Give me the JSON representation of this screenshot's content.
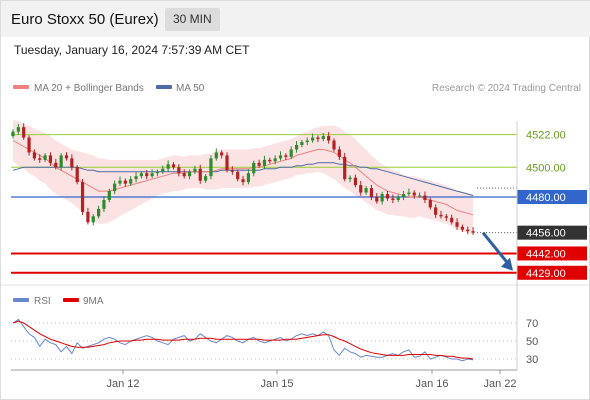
{
  "header": {
    "title": "Euro Stoxx 50 (Eurex)",
    "timeframe": "30 MIN",
    "datetime": "Tuesday, January 16, 2024 7:57:39 AM CET"
  },
  "legend": {
    "ma20": "MA 20 + Bollinger Bands",
    "ma50": "MA 50",
    "credit": "Research © 2024 Trading Central",
    "rsi": "RSI",
    "rsi_ma": "9MA"
  },
  "colors": {
    "ma20": "#f08080",
    "bands": "#fbdada",
    "ma50": "#4a6aa8",
    "up": "#2e8b2e",
    "down": "#b22222",
    "resistance": "#9acd32",
    "pivot": "#3366cc",
    "support": "#e00000",
    "last_price": "#333333",
    "arrow": "#2f5f9e",
    "rsi": "#6688cc",
    "rsi_ma": "#e00000"
  },
  "chart_data": [
    {
      "type": "candlestick",
      "title": "Euro Stoxx 50 (Eurex)",
      "timeframe": "30 MIN",
      "x_ticks": [
        "Jan 12",
        "Jan 15",
        "Jan 16",
        "Jan 22"
      ],
      "ylim": [
        4420,
        4530
      ],
      "levels": [
        {
          "label": "4522.00",
          "value": 4522,
          "kind": "resistance"
        },
        {
          "label": "4500.00",
          "value": 4500,
          "kind": "resistance"
        },
        {
          "label": "4480.00",
          "value": 4480,
          "kind": "pivot"
        },
        {
          "label": "4456.00",
          "value": 4456,
          "kind": "last_price"
        },
        {
          "label": "4442.00",
          "value": 4442,
          "kind": "support"
        },
        {
          "label": "4429.00",
          "value": 4429,
          "kind": "support"
        }
      ],
      "close": [
        4524,
        4527,
        4520,
        4510,
        4506,
        4505,
        4508,
        4503,
        4500,
        4508,
        4506,
        4500,
        4490,
        4470,
        4463,
        4467,
        4472,
        4478,
        4484,
        4489,
        4491,
        4489,
        4492,
        4494,
        4496,
        4494,
        4496,
        4497,
        4499,
        4502,
        4500,
        4496,
        4494,
        4497,
        4499,
        4491,
        4494,
        4506,
        4510,
        4508,
        4498,
        4497,
        4492,
        4490,
        4496,
        4503,
        4501,
        4505,
        4504,
        4506,
        4508,
        4507,
        4512,
        4515,
        4517,
        4518,
        4520,
        4519,
        4521,
        4518,
        4512,
        4507,
        4492,
        4493,
        4488,
        4483,
        4486,
        4480,
        4477,
        4482,
        4479,
        4478,
        4480,
        4482,
        4483,
        4481,
        4481,
        4478,
        4473,
        4468,
        4467,
        4466,
        4463,
        4460,
        4458,
        4457,
        4456
      ],
      "ma20": [
        4518,
        4516,
        4514,
        4512,
        4510,
        4508,
        4506,
        4503,
        4500,
        4498,
        4496,
        4494,
        4492,
        4490,
        4488,
        4486,
        4484,
        4484,
        4484,
        4485,
        4486,
        4487,
        4488,
        4489,
        4490,
        4491,
        4492,
        4493,
        4494,
        4495,
        4496,
        4496,
        4496,
        4497,
        4497,
        4497,
        4497,
        4497,
        4498,
        4499,
        4499,
        4499,
        4499,
        4499,
        4499,
        4500,
        4500,
        4501,
        4502,
        4503,
        4504,
        4505,
        4506,
        4508,
        4509,
        4510,
        4511,
        4512,
        4512,
        4511,
        4510,
        4508,
        4505,
        4503,
        4500,
        4497,
        4494,
        4491,
        4488,
        4486,
        4484,
        4483,
        4482,
        4481,
        4480,
        4480,
        4480,
        4479,
        4478,
        4477,
        4476,
        4475,
        4473,
        4471,
        4470,
        4469,
        4468
      ],
      "ma50": [
        4498,
        4499,
        4500,
        4500,
        4500,
        4500,
        4500,
        4500,
        4500,
        4500,
        4500,
        4500,
        4500,
        4499,
        4498,
        4498,
        4497,
        4497,
        4497,
        4497,
        4497,
        4497,
        4497,
        4497,
        4497,
        4497,
        4497,
        4497,
        4497,
        4497,
        4497,
        4497,
        4497,
        4497,
        4497,
        4497,
        4497,
        4497,
        4497,
        4498,
        4498,
        4498,
        4498,
        4498,
        4498,
        4498,
        4498,
        4499,
        4499,
        4499,
        4500,
        4500,
        4500,
        4501,
        4501,
        4502,
        4502,
        4503,
        4503,
        4503,
        4503,
        4502,
        4502,
        4501,
        4501,
        4500,
        4500,
        4499,
        4499,
        4498,
        4497,
        4496,
        4495,
        4494,
        4493,
        4492,
        4491,
        4490,
        4489,
        4488,
        4487,
        4486,
        4485,
        4484,
        4483,
        4482,
        4481
      ],
      "bb_width": [
        14,
        15,
        15,
        16,
        16,
        17,
        17,
        18,
        18,
        18,
        18,
        18,
        19,
        20,
        21,
        22,
        22,
        22,
        21,
        20,
        19,
        18,
        17,
        16,
        15,
        14,
        13,
        12,
        12,
        12,
        12,
        12,
        11,
        11,
        11,
        11,
        12,
        12,
        13,
        13,
        13,
        13,
        13,
        13,
        13,
        13,
        13,
        13,
        13,
        13,
        13,
        13,
        13,
        13,
        14,
        14,
        15,
        15,
        16,
        17,
        18,
        19,
        19,
        19,
        19,
        18,
        18,
        17,
        17,
        16,
        16,
        15,
        15,
        14,
        14,
        14,
        13,
        13,
        13,
        13,
        13,
        13,
        13,
        13,
        13,
        13,
        13
      ]
    },
    {
      "type": "line",
      "title": "RSI",
      "ylim": [
        20,
        80
      ],
      "y_ticks": [
        70,
        50,
        30
      ],
      "series": [
        {
          "name": "RSI",
          "values": [
            70,
            74,
            66,
            58,
            54,
            44,
            52,
            48,
            46,
            38,
            44,
            36,
            48,
            42,
            44,
            46,
            48,
            52,
            54,
            52,
            48,
            46,
            50,
            52,
            54,
            56,
            54,
            50,
            48,
            46,
            52,
            54,
            56,
            50,
            52,
            58,
            54,
            50,
            48,
            52,
            56,
            54,
            50,
            48,
            52,
            54,
            50,
            48,
            50,
            52,
            54,
            50,
            52,
            56,
            58,
            56,
            58,
            56,
            60,
            56,
            40,
            34,
            42,
            38,
            36,
            32,
            34,
            33,
            32,
            32,
            34,
            36,
            34,
            38,
            40,
            32,
            33,
            38,
            30,
            32,
            34,
            32,
            30,
            30,
            28,
            30,
            29
          ]
        },
        {
          "name": "9MA",
          "values": [
            70,
            72,
            70,
            66,
            62,
            58,
            55,
            52,
            50,
            48,
            46,
            44,
            43,
            43,
            43,
            44,
            45,
            46,
            48,
            49,
            50,
            50,
            50,
            51,
            51,
            52,
            52,
            52,
            51,
            51,
            51,
            51,
            52,
            52,
            52,
            53,
            53,
            53,
            52,
            52,
            52,
            52,
            52,
            52,
            52,
            52,
            52,
            51,
            51,
            51,
            51,
            52,
            52,
            52,
            53,
            54,
            55,
            56,
            57,
            57,
            55,
            52,
            50,
            47,
            44,
            41,
            39,
            37,
            36,
            35,
            34,
            34,
            34,
            34,
            35,
            35,
            35,
            35,
            35,
            34,
            34,
            33,
            33,
            32,
            31,
            31,
            30
          ]
        }
      ]
    }
  ]
}
